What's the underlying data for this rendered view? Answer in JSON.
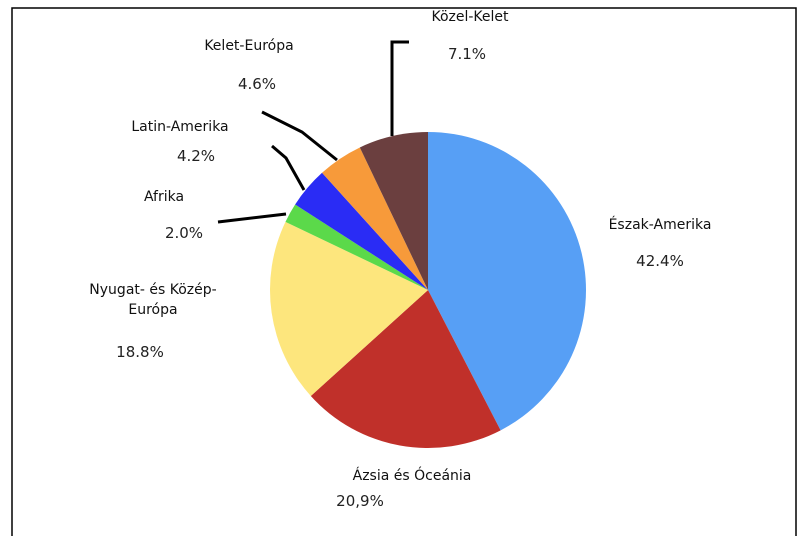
{
  "chart_data": {
    "type": "pie",
    "categories": [
      "Észak-Amerika",
      "Ázsia és Óceánia",
      "Nyugat- és Közép-Európa",
      "Afrika",
      "Latin-Amerika",
      "Kelet-Európa",
      "Közel-Kelet"
    ],
    "values": [
      42.4,
      20.9,
      18.8,
      2.0,
      4.2,
      4.6,
      7.1
    ],
    "value_labels": [
      "42.4%",
      "20,9%",
      "18.8%",
      "2.0%",
      "4.2%",
      "4.6%",
      "7.1%"
    ],
    "colors": [
      "#579ff5",
      "#c0302a",
      "#fde67d",
      "#5bd94a",
      "#2a2cf5",
      "#f79a3a",
      "#6b3f3f"
    ]
  }
}
